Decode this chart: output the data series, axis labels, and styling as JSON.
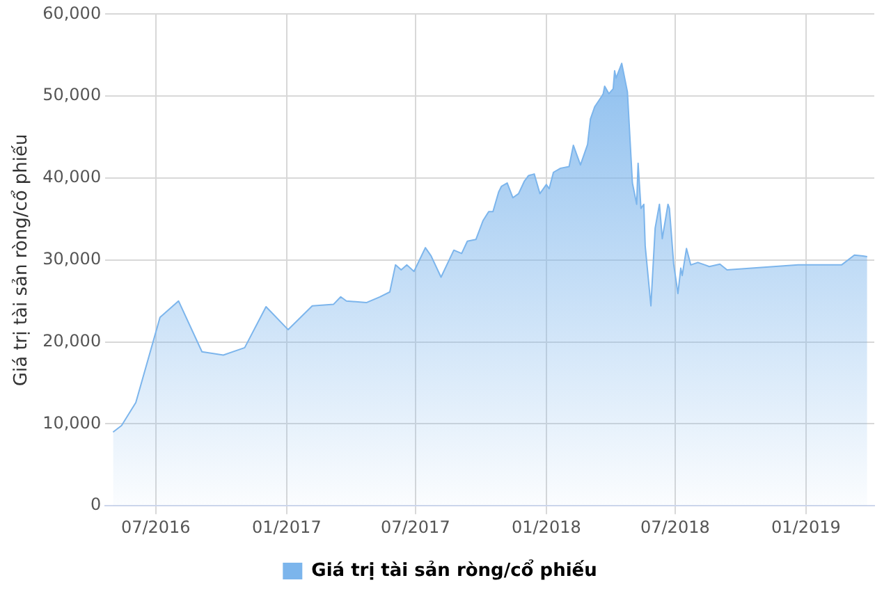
{
  "chart_data": {
    "type": "area",
    "ylabel": "Giá trị tài sản ròng/cổ phiếu",
    "x": [
      "2016-05-02",
      "2016-05-14",
      "2016-06-03",
      "2016-07-07",
      "2016-08-02",
      "2016-09-04",
      "2016-10-04",
      "2016-11-03",
      "2016-12-03",
      "2017-01-03",
      "2017-02-06",
      "2017-03-08",
      "2017-03-18",
      "2017-03-26",
      "2017-04-23",
      "2017-05-12",
      "2017-05-26",
      "2017-06-03",
      "2017-06-11",
      "2017-06-19",
      "2017-06-29",
      "2017-07-15",
      "2017-07-23",
      "2017-08-06",
      "2017-08-24",
      "2017-09-04",
      "2017-09-12",
      "2017-09-24",
      "2017-10-04",
      "2017-10-12",
      "2017-10-18",
      "2017-10-26",
      "2017-10-30",
      "2017-11-07",
      "2017-11-15",
      "2017-11-23",
      "2017-12-01",
      "2017-12-07",
      "2017-12-15",
      "2017-12-23",
      "2018-01-01",
      "2018-01-05",
      "2018-01-11",
      "2018-01-21",
      "2018-02-02",
      "2018-02-08",
      "2018-02-18",
      "2018-02-28",
      "2018-03-04",
      "2018-03-10",
      "2018-03-20",
      "2018-03-22",
      "2018-03-24",
      "2018-03-30",
      "2018-04-05",
      "2018-04-07",
      "2018-04-09",
      "2018-04-17",
      "2018-04-25",
      "2018-05-02",
      "2018-05-08",
      "2018-05-10",
      "2018-05-14",
      "2018-05-18",
      "2018-05-20",
      "2018-05-28",
      "2018-06-03",
      "2018-06-09",
      "2018-06-13",
      "2018-06-21",
      "2018-06-23",
      "2018-06-29",
      "2018-07-05",
      "2018-07-09",
      "2018-07-11",
      "2018-07-17",
      "2018-07-23",
      "2018-08-02",
      "2018-08-12",
      "2018-08-18",
      "2018-09-02",
      "2018-09-12",
      "2018-12-21",
      "2019-02-20",
      "2019-03-10",
      "2019-03-22",
      "2019-03-28"
    ],
    "series": [
      {
        "name": "Giá trị tài sản ròng/cổ phiếu",
        "color": "#7cb5ec",
        "values": [
          9000,
          9800,
          12600,
          23000,
          25000,
          18800,
          18400,
          19300,
          24300,
          21500,
          24400,
          24600,
          25500,
          25000,
          24800,
          25500,
          26100,
          29400,
          28800,
          29400,
          28600,
          31500,
          30500,
          27900,
          31200,
          30800,
          32300,
          32500,
          34800,
          35900,
          35900,
          38300,
          39000,
          39400,
          37600,
          38100,
          39600,
          40300,
          40500,
          38100,
          39200,
          38700,
          40700,
          41200,
          41400,
          44000,
          41600,
          44100,
          47200,
          48700,
          50000,
          50300,
          51200,
          50300,
          50900,
          53100,
          52200,
          54000,
          50500,
          39400,
          36800,
          41800,
          36300,
          36800,
          31700,
          24400,
          33900,
          36800,
          32600,
          36800,
          36300,
          29500,
          25900,
          29000,
          28100,
          31400,
          29400,
          29700,
          29400,
          29200,
          29500,
          28800,
          29400,
          29400,
          30600,
          30500,
          30400
        ]
      }
    ],
    "xlim": [
      "2016-04-21",
      "2019-04-07"
    ],
    "xticks": [
      {
        "value": "2016-07-01",
        "label": "07/2016"
      },
      {
        "value": "2017-01-01",
        "label": "01/2017"
      },
      {
        "value": "2017-07-01",
        "label": "07/2017"
      },
      {
        "value": "2018-01-01",
        "label": "01/2018"
      },
      {
        "value": "2018-07-01",
        "label": "07/2018"
      },
      {
        "value": "2019-01-01",
        "label": "01/2019"
      }
    ],
    "ylim": [
      0,
      60000
    ],
    "yticks": [
      {
        "value": 0,
        "label": "0"
      },
      {
        "value": 10000,
        "label": "10,000"
      },
      {
        "value": 20000,
        "label": "20,000"
      },
      {
        "value": 30000,
        "label": "30,000"
      },
      {
        "value": 40000,
        "label": "40,000"
      },
      {
        "value": 50000,
        "label": "50,000"
      },
      {
        "value": 60000,
        "label": "60,000"
      }
    ],
    "grid": true,
    "legend": "bottom",
    "marker": "none"
  }
}
